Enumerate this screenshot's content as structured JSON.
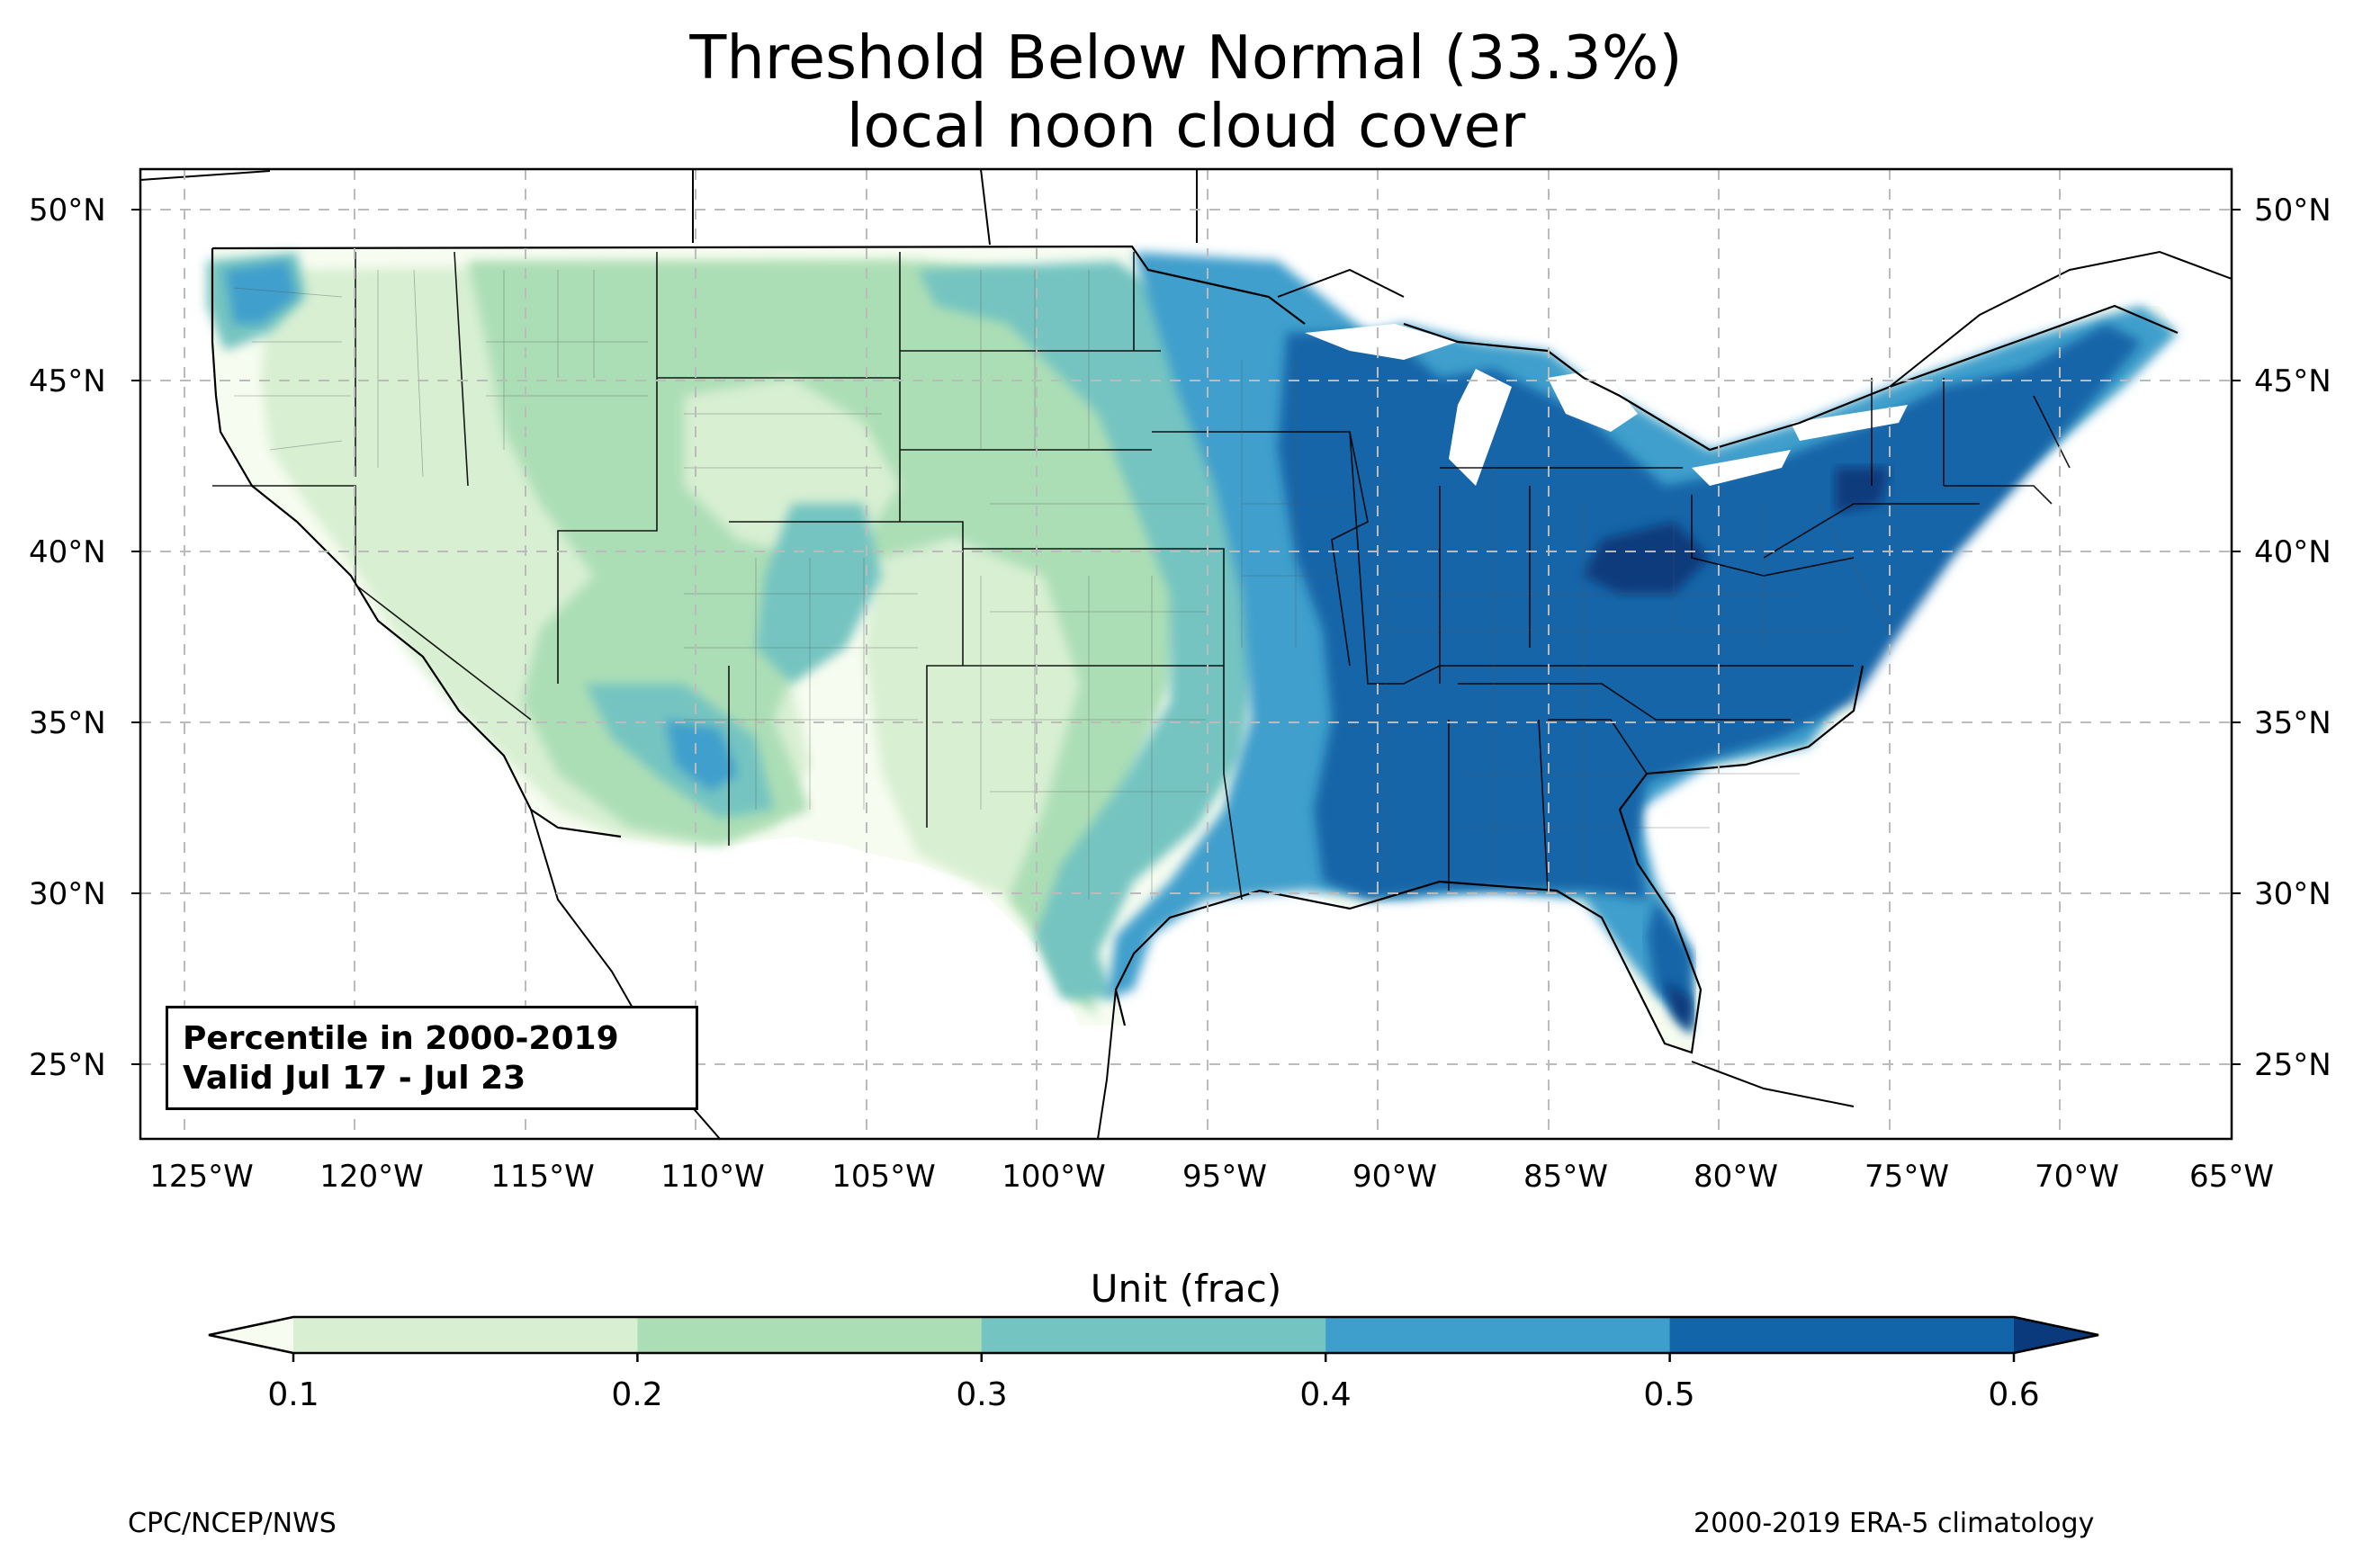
{
  "title": {
    "line1": "Threshold Below Normal (33.3%)",
    "line2": "local noon cloud cover"
  },
  "map": {
    "lat_labels": [
      "50°N",
      "45°N",
      "40°N",
      "35°N",
      "30°N",
      "25°N"
    ],
    "lon_labels": [
      "125°W",
      "120°W",
      "115°W",
      "110°W",
      "105°W",
      "100°W",
      "95°W",
      "90°W",
      "85°W",
      "80°W",
      "75°W",
      "70°W",
      "65°W"
    ],
    "extent": {
      "lon": [
        -126.3,
        -65.0
      ],
      "lat": [
        22.8,
        51.1
      ]
    },
    "gridlines": true
  },
  "legend_box": {
    "line1": "Percentile in 2000-2019",
    "line2": " Valid Jul 17 - Jul 23"
  },
  "colorbar": {
    "label": "Unit (frac)",
    "ticks": [
      "0.1",
      "0.2",
      "0.3",
      "0.4",
      "0.5",
      "0.6"
    ],
    "levels": [
      0.1,
      0.2,
      0.3,
      0.4,
      0.5,
      0.6
    ],
    "colors": {
      "under": "#f7fcf0",
      "b1": "#d8efd2",
      "b2": "#acdeb5",
      "b3": "#74c4c1",
      "b4": "#3f9fcc",
      "b5": "#1265a8",
      "over": "#0a3a7c"
    },
    "extend": "both"
  },
  "credits": {
    "left": "CPC/NCEP/NWS",
    "right": "2000-2019 ERA-5 climatology"
  }
}
